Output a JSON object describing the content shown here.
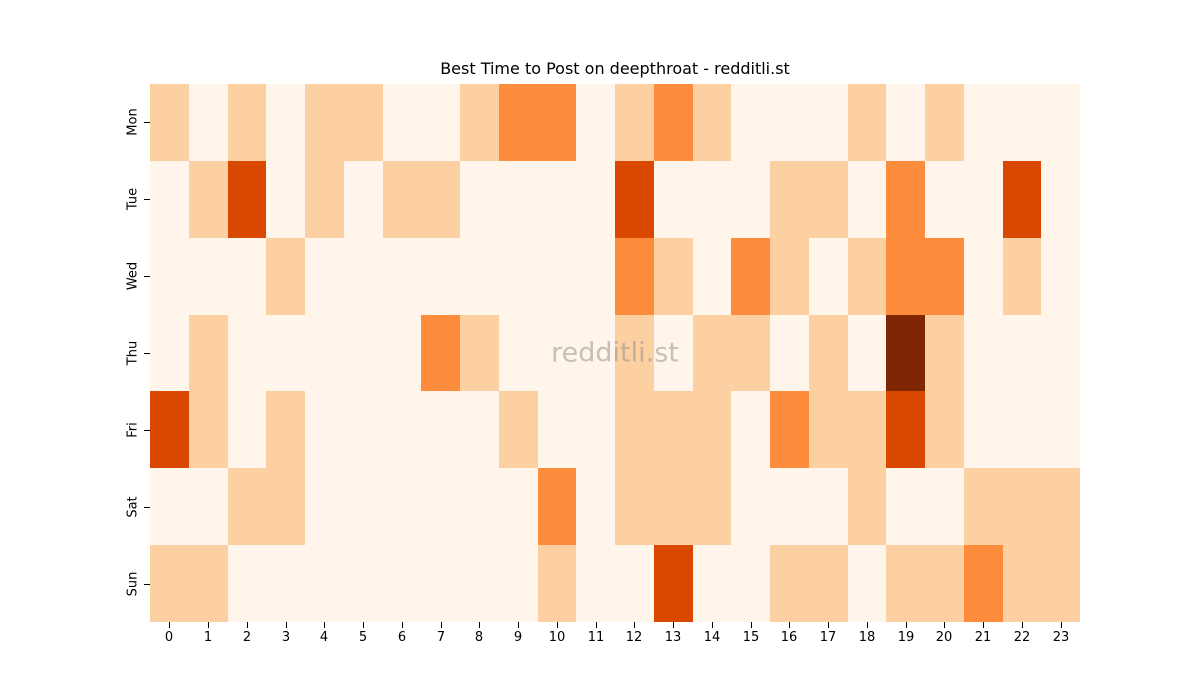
{
  "chart_data": {
    "type": "heatmap",
    "title": "Best Time to Post on deepthroat - redditli.st",
    "xlabel": "",
    "ylabel": "",
    "x": [
      "0",
      "1",
      "2",
      "3",
      "4",
      "5",
      "6",
      "7",
      "8",
      "9",
      "10",
      "11",
      "12",
      "13",
      "14",
      "15",
      "16",
      "17",
      "18",
      "19",
      "20",
      "21",
      "22",
      "23"
    ],
    "y": [
      "Mon",
      "Tue",
      "Wed",
      "Thu",
      "Fri",
      "Sat",
      "Sun"
    ],
    "values": [
      [
        1,
        0,
        1,
        0,
        1,
        1,
        0,
        0,
        1,
        2,
        2,
        0,
        1,
        2,
        1,
        0,
        0,
        0,
        1,
        0,
        1,
        0,
        0,
        0
      ],
      [
        0,
        1,
        3,
        0,
        1,
        0,
        1,
        1,
        0,
        0,
        0,
        0,
        3,
        0,
        0,
        0,
        1,
        1,
        0,
        2,
        0,
        0,
        3,
        0
      ],
      [
        0,
        0,
        0,
        1,
        0,
        0,
        0,
        0,
        0,
        0,
        0,
        0,
        2,
        1,
        0,
        2,
        1,
        0,
        1,
        2,
        2,
        0,
        1,
        0
      ],
      [
        0,
        1,
        0,
        0,
        0,
        0,
        0,
        2,
        1,
        0,
        0,
        0,
        1,
        0,
        1,
        1,
        0,
        1,
        0,
        4,
        1,
        0,
        0,
        0
      ],
      [
        3,
        1,
        0,
        1,
        0,
        0,
        0,
        0,
        0,
        1,
        0,
        0,
        1,
        1,
        1,
        0,
        2,
        1,
        1,
        3,
        1,
        0,
        0,
        0
      ],
      [
        0,
        0,
        1,
        1,
        0,
        0,
        0,
        0,
        0,
        0,
        2,
        0,
        1,
        1,
        1,
        0,
        0,
        0,
        1,
        0,
        0,
        1,
        1,
        1
      ],
      [
        1,
        1,
        0,
        0,
        0,
        0,
        0,
        0,
        0,
        0,
        1,
        0,
        0,
        3,
        0,
        0,
        1,
        1,
        0,
        1,
        1,
        2,
        1,
        1
      ]
    ],
    "value_scale": "relative activity level (0 = lowest, 4 = highest)",
    "colormap": "Oranges",
    "colors": [
      "#fff5eb",
      "#fdd0a2",
      "#fd8d3c",
      "#d94801",
      "#7f2704"
    ],
    "colorbar": false,
    "grid": false,
    "annotations": [
      "redditli.st"
    ]
  },
  "watermark": "redditli.st"
}
